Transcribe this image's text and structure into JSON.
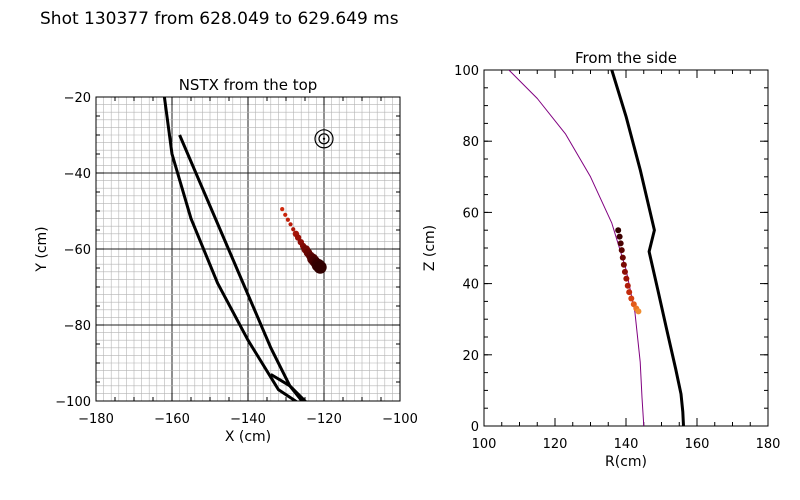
{
  "header": {
    "title": "Shot 130377 from 628.049 to 629.649 ms"
  },
  "chart_data": [
    {
      "type": "scatter",
      "title": "NSTX from the top",
      "xlabel": "X (cm)",
      "ylabel": "Y (cm)",
      "xlim": [
        -180,
        -100
      ],
      "ylim": [
        -100,
        -20
      ],
      "grid": true,
      "x_ticks": [
        "−180",
        "−160",
        "−140",
        "−120",
        "−100"
      ],
      "y_ticks": [
        "−100",
        "−80",
        "−60",
        "−40",
        "−20"
      ],
      "target_marker": {
        "x": -120,
        "y": -31
      },
      "outlines": [
        {
          "name": "outer-wall",
          "x": [
            -162,
            -160,
            -155,
            -148,
            -140,
            -132,
            -126
          ],
          "y": [
            -20,
            -35,
            -52,
            -69,
            -84,
            -97,
            -101
          ]
        },
        {
          "name": "inner-wall",
          "x": [
            -158,
            -152,
            -146,
            -140,
            -134,
            -129,
            -124
          ],
          "y": [
            -30,
            -44,
            -58,
            -72,
            -86,
            -96,
            -101
          ]
        },
        {
          "name": "crossing-wall",
          "x": [
            -134,
            -129,
            -125
          ],
          "y": [
            -93,
            -96,
            -101
          ]
        }
      ],
      "points": [
        {
          "x": -131.0,
          "y": -49.5,
          "size": 1,
          "color": "#d02a0e"
        },
        {
          "x": -130.2,
          "y": -51.0,
          "size": 1,
          "color": "#c8240c"
        },
        {
          "x": -129.5,
          "y": -52.3,
          "size": 1,
          "color": "#c0200a"
        },
        {
          "x": -128.8,
          "y": -53.5,
          "size": 1,
          "color": "#b81c0a"
        },
        {
          "x": -128.1,
          "y": -54.8,
          "size": 1,
          "color": "#ae180a"
        },
        {
          "x": -127.4,
          "y": -56.0,
          "size": 2,
          "color": "#a51408"
        },
        {
          "x": -126.8,
          "y": -57.0,
          "size": 2,
          "color": "#9a1006"
        },
        {
          "x": -126.1,
          "y": -58.2,
          "size": 2,
          "color": "#8d0c06"
        },
        {
          "x": -125.5,
          "y": -59.2,
          "size": 2,
          "color": "#820a04"
        },
        {
          "x": -124.8,
          "y": -60.1,
          "size": 3,
          "color": "#750804"
        },
        {
          "x": -124.2,
          "y": -61.0,
          "size": 3,
          "color": "#680602"
        },
        {
          "x": -123.6,
          "y": -61.8,
          "size": 3,
          "color": "#5e0402"
        },
        {
          "x": -123.0,
          "y": -62.6,
          "size": 4,
          "color": "#520302"
        },
        {
          "x": -122.5,
          "y": -63.2,
          "size": 4,
          "color": "#480202"
        },
        {
          "x": -122.0,
          "y": -63.8,
          "size": 4,
          "color": "#3e0101"
        },
        {
          "x": -121.5,
          "y": -64.3,
          "size": 5,
          "color": "#360000"
        },
        {
          "x": -121.0,
          "y": -64.8,
          "size": 5,
          "color": "#300000"
        }
      ]
    },
    {
      "type": "scatter",
      "title": "From the side",
      "xlabel": "R(cm)",
      "ylabel": "Z (cm)",
      "xlim": [
        100,
        180
      ],
      "ylim": [
        0,
        100
      ],
      "grid": false,
      "x_ticks": [
        "100",
        "120",
        "140",
        "160",
        "180"
      ],
      "y_ticks": [
        "0",
        "20",
        "40",
        "60",
        "80",
        "100"
      ],
      "outlines": [
        {
          "name": "purple-boundary",
          "color": "#800080",
          "x": [
            107,
            115,
            123,
            130,
            136,
            140,
            142.5,
            144,
            144.5,
            145
          ],
          "y": [
            100,
            92,
            82,
            70,
            57,
            44,
            32,
            18,
            8,
            0
          ]
        },
        {
          "name": "black-wall",
          "color": "#000000",
          "x": [
            136,
            140,
            144,
            148,
            146.5,
            149,
            151.5,
            154,
            155.5,
            156,
            156.2
          ],
          "y": [
            100,
            87,
            72,
            55,
            49,
            38,
            27,
            16,
            9,
            4,
            0
          ]
        }
      ],
      "points": [
        {
          "x": 137.8,
          "y": 55.0,
          "color": "#330000"
        },
        {
          "x": 138.2,
          "y": 53.2,
          "color": "#3e0000"
        },
        {
          "x": 138.5,
          "y": 51.3,
          "color": "#4b0202"
        },
        {
          "x": 138.8,
          "y": 49.4,
          "color": "#5a0402"
        },
        {
          "x": 139.1,
          "y": 47.3,
          "color": "#6a0604"
        },
        {
          "x": 139.4,
          "y": 45.3,
          "color": "#7a0a04"
        },
        {
          "x": 139.7,
          "y": 43.3,
          "color": "#8c0e06"
        },
        {
          "x": 140.1,
          "y": 41.4,
          "color": "#9e1408"
        },
        {
          "x": 140.5,
          "y": 39.4,
          "color": "#b01c0a"
        },
        {
          "x": 140.9,
          "y": 37.6,
          "color": "#c22a0c"
        },
        {
          "x": 141.5,
          "y": 35.8,
          "color": "#d43e10"
        },
        {
          "x": 142.2,
          "y": 34.2,
          "color": "#e25a18"
        },
        {
          "x": 142.9,
          "y": 33.0,
          "color": "#ec7624"
        },
        {
          "x": 143.5,
          "y": 32.2,
          "color": "#f08e30"
        }
      ]
    }
  ]
}
